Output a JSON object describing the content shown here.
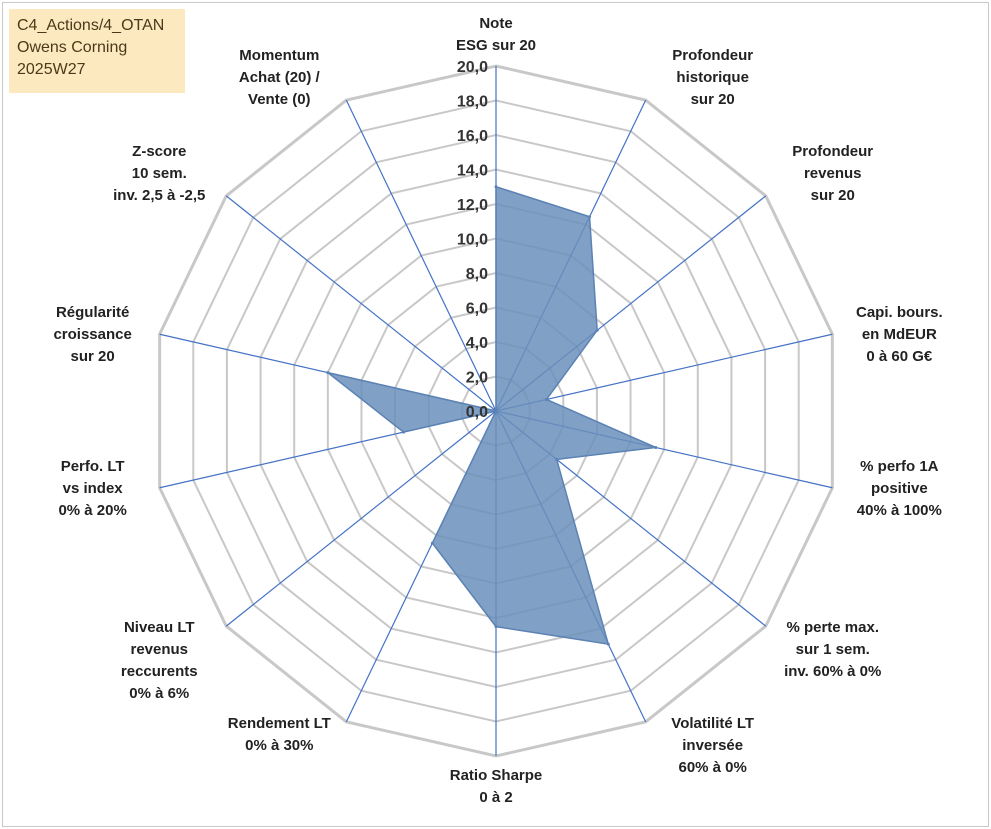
{
  "tag": {
    "lines": [
      "C4_Actions/4_OTAN",
      "Owens Corning",
      "2025W27"
    ]
  },
  "chart_data": {
    "type": "radar",
    "title": "",
    "rlim": [
      0,
      20
    ],
    "tick_step": 2,
    "tick_labels": [
      "0,0",
      "2,0",
      "4,0",
      "6,0",
      "8,0",
      "10,0",
      "12,0",
      "14,0",
      "16,0",
      "18,0",
      "20,0"
    ],
    "grid": true,
    "legend": "none",
    "colors": {
      "fill": "#6a8fbb",
      "stroke": "#5b82b4",
      "spoke": "#4472c4",
      "grid": "#c8c8c8"
    },
    "axes": [
      {
        "label": [
          "Note",
          "ESG sur 20"
        ]
      },
      {
        "label": [
          "Profondeur",
          "historique",
          "sur 20"
        ]
      },
      {
        "label": [
          "Profondeur",
          "revenus",
          "sur 20"
        ]
      },
      {
        "label": [
          "Capi. bours.",
          "en MdEUR",
          "0 à 60 G€"
        ]
      },
      {
        "label": [
          "% perfo 1A",
          "positive",
          "40% à 100%"
        ]
      },
      {
        "label": [
          "% perte max.",
          "sur 1 sem.",
          "inv. 60% à 0%"
        ]
      },
      {
        "label": [
          "Volatilité LT",
          "inversée",
          "60% à 0%"
        ]
      },
      {
        "label": [
          "Ratio Sharpe",
          "0 à 2"
        ]
      },
      {
        "label": [
          "Rendement LT",
          "0% à 30%"
        ]
      },
      {
        "label": [
          "Niveau LT",
          "revenus",
          "reccurents",
          "0% à 6%"
        ]
      },
      {
        "label": [
          "Perfo. LT",
          "vs index",
          "0% à 20%"
        ]
      },
      {
        "label": [
          "Régularité",
          "croissance",
          "sur 20"
        ]
      },
      {
        "label": [
          "Z-score",
          "10 sem.",
          "inv. 2,5 à -2,5"
        ]
      },
      {
        "label": [
          "Momentum",
          "Achat (20) /",
          "Vente (0)"
        ]
      }
    ],
    "series": [
      {
        "values": [
          13.0,
          12.5,
          7.5,
          3.0,
          9.5,
          4.5,
          15.0,
          12.5,
          8.5,
          0.0,
          5.5,
          10.0,
          0.0,
          0.0
        ]
      }
    ]
  }
}
